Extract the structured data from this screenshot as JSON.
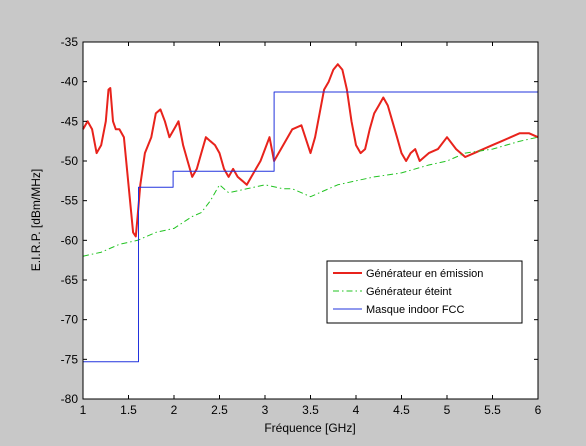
{
  "chart_data": {
    "type": "line",
    "title": "",
    "xlabel": "Fréquence [GHz]",
    "ylabel": "E.I.R.P. [dBm/MHz]",
    "xlim": [
      1,
      6
    ],
    "ylim": [
      -80,
      -35
    ],
    "xticks": [
      1,
      1.5,
      2,
      2.5,
      3,
      3.5,
      4,
      4.5,
      5,
      5.5,
      6
    ],
    "xtick_labels": [
      "1",
      "1.5",
      "2",
      "2.5",
      "3",
      "3.5",
      "4",
      "4.5",
      "5",
      "5.5",
      "6"
    ],
    "yticks": [
      -80,
      -75,
      -70,
      -65,
      -60,
      -55,
      -50,
      -45,
      -40,
      -35
    ],
    "ytick_labels": [
      "-80",
      "-75",
      "-70",
      "-65",
      "-60",
      "-55",
      "-50",
      "-45",
      "-40",
      "-35"
    ],
    "grid": false,
    "legend_position": "lower-right",
    "series": [
      {
        "name": "Générateur en émission",
        "color": "#e8231c",
        "style": "solid",
        "x": [
          1.0,
          1.05,
          1.1,
          1.15,
          1.2,
          1.25,
          1.28,
          1.3,
          1.33,
          1.36,
          1.4,
          1.45,
          1.5,
          1.55,
          1.58,
          1.6,
          1.63,
          1.68,
          1.75,
          1.8,
          1.85,
          1.9,
          1.95,
          2.0,
          2.05,
          2.1,
          2.15,
          2.2,
          2.25,
          2.3,
          2.35,
          2.4,
          2.45,
          2.5,
          2.55,
          2.6,
          2.65,
          2.7,
          2.75,
          2.8,
          2.85,
          2.9,
          2.95,
          3.0,
          3.05,
          3.1,
          3.2,
          3.3,
          3.4,
          3.5,
          3.55,
          3.6,
          3.65,
          3.7,
          3.75,
          3.8,
          3.85,
          3.9,
          3.95,
          4.0,
          4.05,
          4.1,
          4.15,
          4.2,
          4.25,
          4.3,
          4.35,
          4.4,
          4.45,
          4.5,
          4.55,
          4.6,
          4.65,
          4.7,
          4.8,
          4.9,
          5.0,
          5.1,
          5.2,
          5.3,
          5.4,
          5.5,
          5.6,
          5.7,
          5.8,
          5.9,
          6.0
        ],
        "y": [
          -46,
          -45,
          -46,
          -49,
          -48,
          -45,
          -41,
          -40.8,
          -45,
          -46,
          -46,
          -47,
          -53,
          -59,
          -59.5,
          -57,
          -53,
          -49,
          -47,
          -44,
          -43.5,
          -45,
          -47,
          -46,
          -45,
          -48,
          -50,
          -52,
          -51,
          -49,
          -47,
          -47.5,
          -48,
          -49,
          -51,
          -52,
          -51,
          -52,
          -52.5,
          -53,
          -52,
          -51,
          -50,
          -48.5,
          -47,
          -50,
          -48,
          -46,
          -45.5,
          -49,
          -47,
          -44,
          -41,
          -40,
          -38.5,
          -37.8,
          -38.5,
          -41,
          -45,
          -48,
          -49,
          -48.5,
          -46,
          -44,
          -43,
          -42,
          -43,
          -45,
          -47,
          -49,
          -50,
          -49,
          -48.5,
          -50,
          -49,
          -48.5,
          -47,
          -48.5,
          -49.5,
          -49,
          -48.5,
          -48,
          -47.5,
          -47,
          -46.5,
          -46.5,
          -47
        ]
      },
      {
        "name": "Générateur éteint",
        "color": "#22c322",
        "style": "dashdot",
        "x": [
          1.0,
          1.2,
          1.4,
          1.6,
          1.8,
          2.0,
          2.2,
          2.3,
          2.4,
          2.5,
          2.6,
          2.8,
          3.0,
          3.2,
          3.3,
          3.4,
          3.5,
          3.6,
          3.8,
          4.0,
          4.2,
          4.5,
          4.8,
          5.0,
          5.2,
          5.5,
          5.8,
          6.0
        ],
        "y": [
          -62,
          -61.5,
          -60.5,
          -60,
          -59,
          -58.5,
          -57,
          -56.5,
          -55,
          -53,
          -54,
          -53.5,
          -53,
          -53.5,
          -53.5,
          -54,
          -54.5,
          -54,
          -53,
          -52.5,
          -52,
          -51.5,
          -50.5,
          -50,
          -49,
          -48.5,
          -47.5,
          -47
        ]
      },
      {
        "name": "Masque indoor FCC",
        "color": "#2233dd",
        "style": "solid",
        "x": [
          1.0,
          1.61,
          1.61,
          1.99,
          1.99,
          3.1,
          3.1,
          6.0
        ],
        "y": [
          -75.3,
          -75.3,
          -53.3,
          -53.3,
          -51.3,
          -51.3,
          -41.3,
          -41.3
        ]
      }
    ]
  }
}
